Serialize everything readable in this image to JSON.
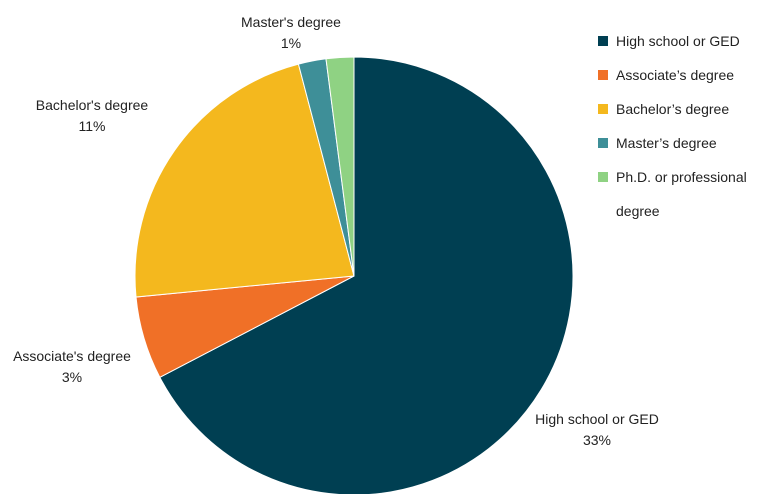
{
  "chart_data": {
    "type": "pie",
    "title": "",
    "categories": [
      "High school or GED",
      "Associate's degree",
      "Bachelor's degree",
      "Master's degree",
      "Ph.D. or professional degree"
    ],
    "values": [
      33,
      3,
      11,
      1,
      1
    ],
    "labels": [
      {
        "name": "High school or GED",
        "value": "33%"
      },
      {
        "name": "Associate's degree",
        "value": "3%"
      },
      {
        "name": "Bachelor's degree",
        "value": "11%"
      },
      {
        "name": "Master's degree",
        "value": "1%"
      }
    ],
    "colors": [
      "#003f52",
      "#f07027",
      "#f4b81e",
      "#3e8f98",
      "#8fd283"
    ],
    "legend": {
      "position": "right",
      "items": [
        "High school or GED",
        "Associate’s degree",
        "Bachelor’s degree",
        "Master’s degree",
        "Ph.D. or professional degree"
      ]
    }
  }
}
